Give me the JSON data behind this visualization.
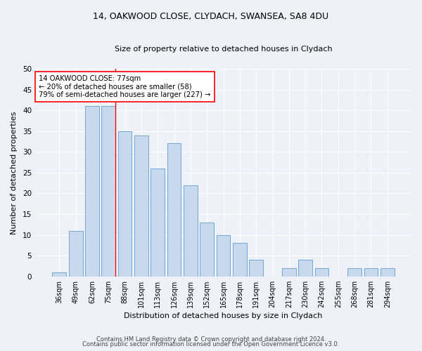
{
  "title_line1": "14, OAKWOOD CLOSE, CLYDACH, SWANSEA, SA8 4DU",
  "title_line2": "Size of property relative to detached houses in Clydach",
  "xlabel": "Distribution of detached houses by size in Clydach",
  "ylabel": "Number of detached properties",
  "categories": [
    "36sqm",
    "49sqm",
    "62sqm",
    "75sqm",
    "88sqm",
    "101sqm",
    "113sqm",
    "126sqm",
    "139sqm",
    "152sqm",
    "165sqm",
    "178sqm",
    "191sqm",
    "204sqm",
    "217sqm",
    "230sqm",
    "242sqm",
    "255sqm",
    "268sqm",
    "281sqm",
    "294sqm"
  ],
  "values": [
    1,
    11,
    41,
    41,
    35,
    34,
    26,
    32,
    22,
    13,
    10,
    8,
    4,
    0,
    2,
    4,
    2,
    0,
    2,
    2,
    2
  ],
  "bar_color": "#c9d9ed",
  "bar_edge_color": "#6fa8d6",
  "annotation_text": "14 OAKWOOD CLOSE: 77sqm\n← 20% of detached houses are smaller (58)\n79% of semi-detached houses are larger (227) →",
  "annotation_box_color": "white",
  "annotation_box_edge_color": "red",
  "vline_color": "red",
  "vline_x_index": 3,
  "footer_line1": "Contains HM Land Registry data © Crown copyright and database right 2024.",
  "footer_line2": "Contains public sector information licensed under the Open Government Licence v3.0.",
  "background_color": "#eef2f8",
  "ylim": [
    0,
    50
  ],
  "yticks": [
    0,
    5,
    10,
    15,
    20,
    25,
    30,
    35,
    40,
    45,
    50
  ]
}
